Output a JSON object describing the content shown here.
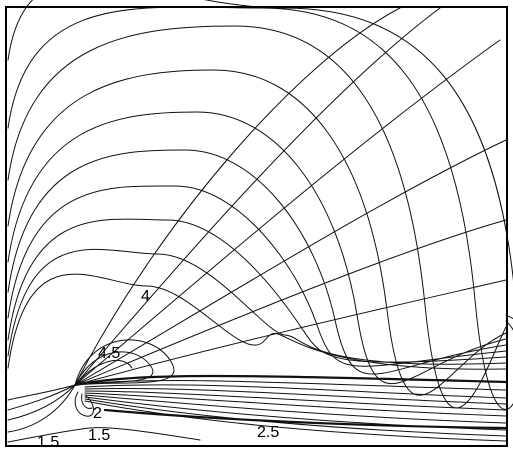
{
  "contour_labels": {
    "l4": "4",
    "l45": "4.5",
    "l2": "2",
    "l25": "2.5",
    "l15a": "1.5",
    "l15b": "1.5"
  },
  "colors": {
    "line": "#111111",
    "background": "#ffffff",
    "frame": "#000000"
  }
}
